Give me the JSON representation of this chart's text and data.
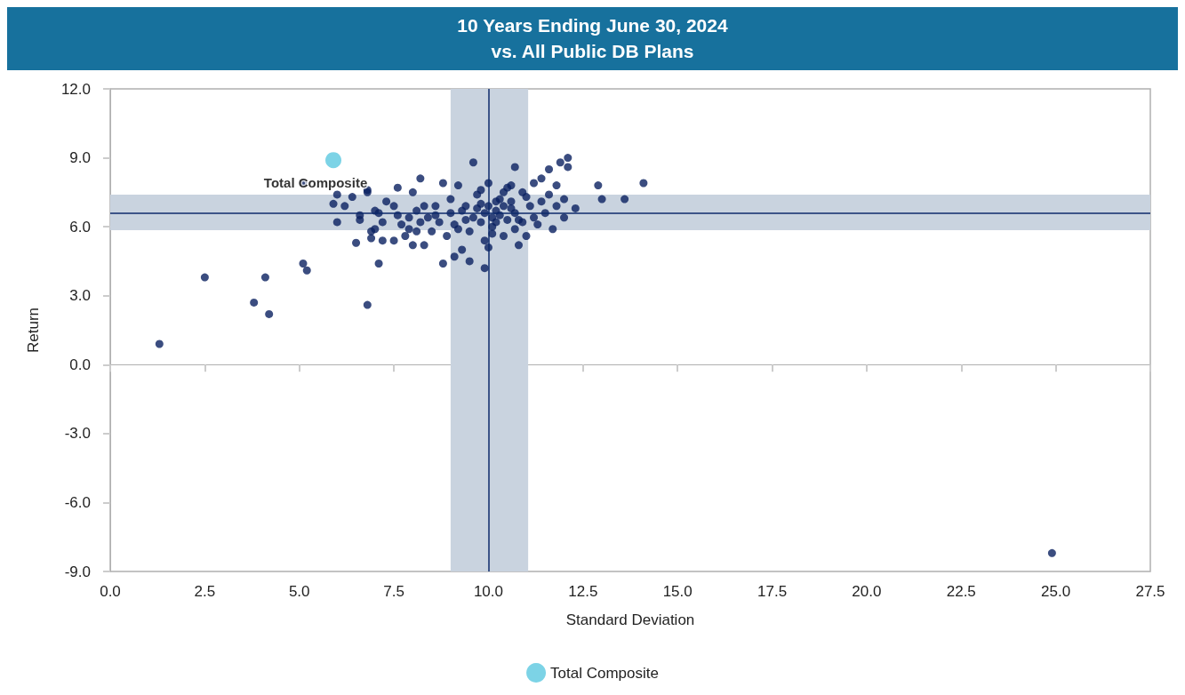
{
  "chart_data": {
    "type": "scatter",
    "title": "10 Years Ending June 30, 2024",
    "subtitle": "vs. All Public DB Plans",
    "xlabel": "Standard Deviation",
    "ylabel": "Return",
    "xlim": [
      0,
      27.5
    ],
    "xticks": [
      {
        "value": 0,
        "label": "0.0"
      },
      2.5,
      {
        "value": 5,
        "label": "5.0"
      },
      7.5,
      {
        "value": 10,
        "label": "10.0"
      },
      12.5,
      {
        "value": 15,
        "label": "15.0"
      },
      17.5,
      {
        "value": 20,
        "label": "20.0"
      },
      22.5,
      {
        "value": 25,
        "label": "25.0"
      },
      27.5
    ],
    "ylim": [
      -9,
      12
    ],
    "yticks": [
      {
        "value": -9,
        "label": "-9.0"
      },
      {
        "value": -6,
        "label": "-6.0"
      },
      {
        "value": -3,
        "label": "-3.0"
      },
      {
        "value": 0,
        "label": "0.0"
      },
      {
        "value": 3,
        "label": "3.0"
      },
      {
        "value": 6,
        "label": "6.0"
      },
      {
        "value": 9,
        "label": "9.0"
      },
      {
        "value": 12,
        "label": "12.0"
      }
    ],
    "grid": false,
    "legend": "bottom",
    "marker": "circle",
    "bands": [
      {
        "axis": "x",
        "from": 9.0,
        "to": 11.05,
        "color": "#c9d3df"
      },
      {
        "axis": "y",
        "from": 5.85,
        "to": 7.4,
        "color": "#c9d3df"
      }
    ],
    "ref_lines": [
      {
        "axis": "x",
        "value": 10.0,
        "color": "#0d2a6b"
      },
      {
        "axis": "y",
        "value": 6.6,
        "color": "#0d2a6b"
      }
    ],
    "series": [
      {
        "color": "#0a2160",
        "x": [
          1.3,
          2.5,
          3.8,
          4.1,
          4.2,
          5.1,
          5.2,
          6.8,
          7.1,
          24.9,
          5.1,
          5.9,
          6.0,
          6.0,
          6.2,
          6.4,
          6.5,
          6.6,
          6.6,
          6.8,
          6.8,
          6.9,
          6.9,
          7.0,
          7.0,
          7.1,
          7.2,
          7.2,
          7.3,
          7.5,
          7.5,
          7.6,
          7.6,
          7.7,
          7.8,
          7.9,
          8.0,
          8.0,
          8.1,
          8.2,
          8.2,
          8.3,
          8.4,
          8.5,
          8.6,
          8.7,
          8.8,
          8.8,
          8.9,
          9.0,
          9.1,
          9.2,
          9.2,
          9.3,
          9.4,
          9.5,
          9.5,
          9.6,
          9.7,
          9.8,
          9.9,
          9.9,
          10.0,
          10.0,
          10.1,
          10.2,
          10.3,
          10.4,
          10.5,
          10.6,
          10.7,
          10.8,
          10.8,
          10.9,
          11.0,
          11.1,
          11.2,
          11.3,
          11.4,
          11.5,
          11.6,
          11.6,
          11.7,
          11.8,
          11.8,
          11.9,
          12.0,
          12.0,
          12.1,
          12.1,
          12.3,
          12.9,
          13.0,
          13.6,
          14.1,
          9.6,
          9.7,
          9.8,
          9.9,
          10.0,
          10.1,
          10.2,
          10.3,
          10.4,
          10.5,
          10.6,
          10.7,
          10.2,
          10.4,
          9.8,
          10.6,
          10.9,
          11.0,
          9.4,
          9.3,
          9.1,
          10.1,
          10.7,
          11.2,
          11.4,
          9.0,
          8.6,
          8.3,
          7.9,
          8.1
        ],
        "values": [
          0.9,
          3.8,
          2.7,
          3.8,
          2.2,
          4.4,
          4.1,
          2.6,
          4.4,
          -8.2,
          7.9,
          7.0,
          7.4,
          6.2,
          6.9,
          7.3,
          5.3,
          6.3,
          6.5,
          7.6,
          7.5,
          5.8,
          5.5,
          5.9,
          6.7,
          6.6,
          6.2,
          5.4,
          7.1,
          6.9,
          5.4,
          7.7,
          6.5,
          6.1,
          5.6,
          5.9,
          5.2,
          7.5,
          6.7,
          6.2,
          8.1,
          5.2,
          6.4,
          5.8,
          6.9,
          6.2,
          4.4,
          7.9,
          5.6,
          6.6,
          4.7,
          7.8,
          5.9,
          5.0,
          6.9,
          4.5,
          5.8,
          8.8,
          7.4,
          6.2,
          4.2,
          5.4,
          5.1,
          7.9,
          6.0,
          7.1,
          6.5,
          5.6,
          7.7,
          6.8,
          8.6,
          5.2,
          6.3,
          7.5,
          5.6,
          6.9,
          7.9,
          6.1,
          8.1,
          6.6,
          7.4,
          8.5,
          5.9,
          6.9,
          7.8,
          8.8,
          6.4,
          7.2,
          9.0,
          8.6,
          6.8,
          7.8,
          7.2,
          7.2,
          7.9,
          6.4,
          6.8,
          7.0,
          6.6,
          6.9,
          6.4,
          6.7,
          7.2,
          6.9,
          6.3,
          7.1,
          6.6,
          6.2,
          7.5,
          7.6,
          7.8,
          6.2,
          7.3,
          6.3,
          6.7,
          6.1,
          5.7,
          5.9,
          6.4,
          7.1,
          7.2,
          6.5,
          6.9,
          6.4,
          5.8
        ]
      },
      {
        "name": "Total Composite",
        "color": "#5bc8e0",
        "x": [
          5.9
        ],
        "values": [
          8.9
        ]
      }
    ]
  }
}
